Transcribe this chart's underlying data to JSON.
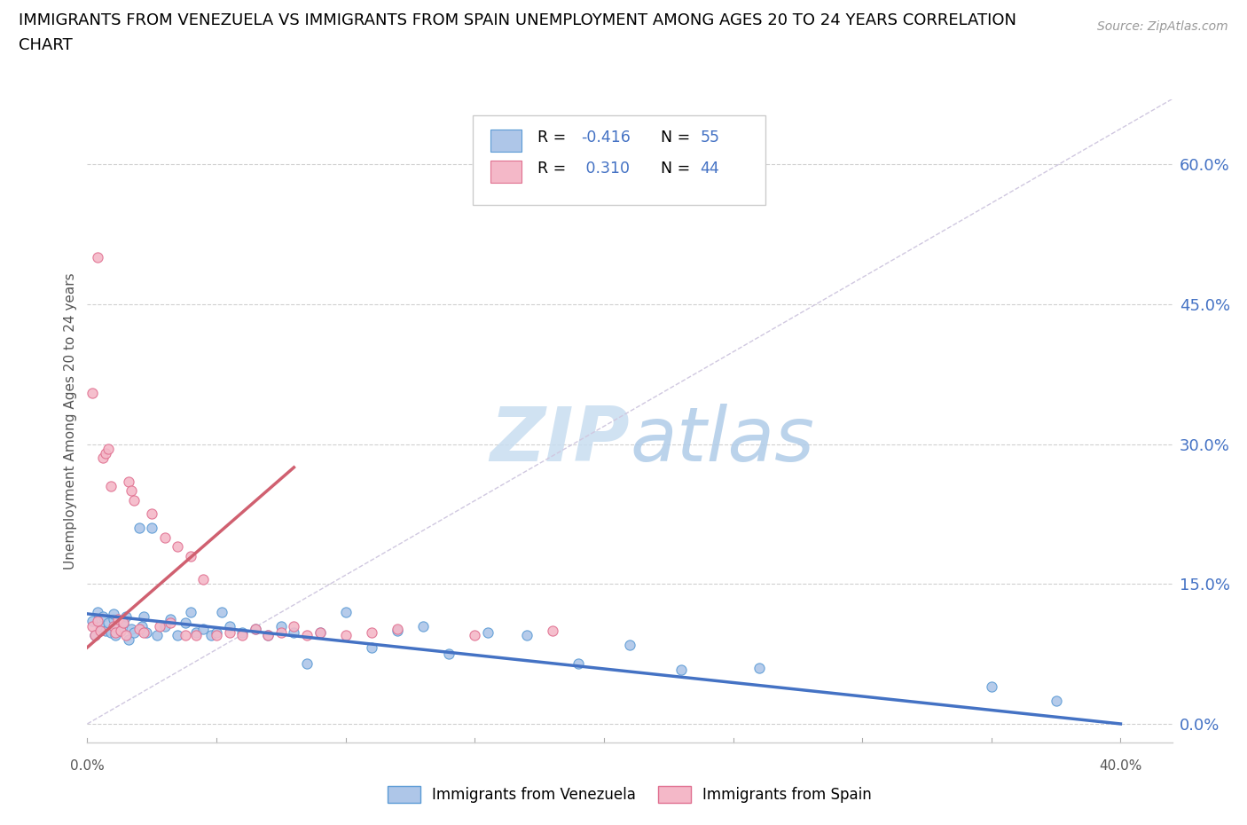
{
  "title_line1": "IMMIGRANTS FROM VENEZUELA VS IMMIGRANTS FROM SPAIN UNEMPLOYMENT AMONG AGES 20 TO 24 YEARS CORRELATION",
  "title_line2": "CHART",
  "source_text": "Source: ZipAtlas.com",
  "ylabel": "Unemployment Among Ages 20 to 24 years",
  "xlim": [
    0.0,
    0.42
  ],
  "ylim": [
    -0.02,
    0.67
  ],
  "yticks": [
    0.0,
    0.15,
    0.3,
    0.45,
    0.6
  ],
  "ytick_labels_right": [
    "0.0%",
    "15.0%",
    "30.0%",
    "45.0%",
    "60.0%"
  ],
  "xtick_bottom_left": "0.0%",
  "xtick_bottom_right": "40.0%",
  "venezuela_color": "#aec6e8",
  "venezuela_edge": "#5b9bd5",
  "spain_color": "#f4b8c8",
  "spain_edge": "#e07090",
  "venezuela_trend_color": "#4472c4",
  "spain_trend_color": "#d06070",
  "diag_color": "#d0c8e0",
  "watermark_text": "ZIPatlas",
  "watermark_color": "#dce8f5",
  "R_venezuela": -0.416,
  "N_venezuela": 55,
  "R_spain": 0.31,
  "N_spain": 44,
  "legend_label_venezuela": "Immigrants from Venezuela",
  "legend_label_spain": "Immigrants from Spain",
  "ven_x": [
    0.002,
    0.003,
    0.004,
    0.005,
    0.006,
    0.007,
    0.008,
    0.009,
    0.01,
    0.01,
    0.011,
    0.012,
    0.013,
    0.014,
    0.015,
    0.016,
    0.017,
    0.018,
    0.02,
    0.021,
    0.022,
    0.023,
    0.025,
    0.027,
    0.03,
    0.032,
    0.035,
    0.038,
    0.04,
    0.042,
    0.045,
    0.048,
    0.05,
    0.052,
    0.055,
    0.06,
    0.065,
    0.07,
    0.075,
    0.08,
    0.085,
    0.09,
    0.1,
    0.11,
    0.12,
    0.13,
    0.14,
    0.155,
    0.17,
    0.19,
    0.21,
    0.23,
    0.26,
    0.35,
    0.375
  ],
  "ven_y": [
    0.11,
    0.095,
    0.12,
    0.105,
    0.115,
    0.1,
    0.108,
    0.098,
    0.112,
    0.118,
    0.095,
    0.105,
    0.1,
    0.108,
    0.115,
    0.09,
    0.102,
    0.098,
    0.21,
    0.105,
    0.115,
    0.098,
    0.21,
    0.095,
    0.105,
    0.112,
    0.095,
    0.108,
    0.12,
    0.098,
    0.102,
    0.095,
    0.098,
    0.12,
    0.105,
    0.098,
    0.102,
    0.095,
    0.105,
    0.098,
    0.065,
    0.098,
    0.12,
    0.082,
    0.1,
    0.105,
    0.075,
    0.098,
    0.095,
    0.065,
    0.085,
    0.058,
    0.06,
    0.04,
    0.025
  ],
  "spa_x": [
    0.002,
    0.003,
    0.004,
    0.005,
    0.006,
    0.007,
    0.008,
    0.009,
    0.01,
    0.011,
    0.012,
    0.013,
    0.014,
    0.015,
    0.016,
    0.017,
    0.018,
    0.02,
    0.022,
    0.025,
    0.028,
    0.03,
    0.032,
    0.035,
    0.038,
    0.04,
    0.042,
    0.045,
    0.05,
    0.055,
    0.06,
    0.065,
    0.07,
    0.075,
    0.08,
    0.085,
    0.09,
    0.1,
    0.11,
    0.12,
    0.15,
    0.18,
    0.002,
    0.004
  ],
  "spa_y": [
    0.105,
    0.095,
    0.11,
    0.1,
    0.285,
    0.29,
    0.295,
    0.255,
    0.105,
    0.098,
    0.112,
    0.1,
    0.108,
    0.095,
    0.26,
    0.25,
    0.24,
    0.102,
    0.098,
    0.225,
    0.105,
    0.2,
    0.108,
    0.19,
    0.095,
    0.18,
    0.095,
    0.155,
    0.095,
    0.098,
    0.095,
    0.102,
    0.095,
    0.098,
    0.105,
    0.095,
    0.098,
    0.095,
    0.098,
    0.102,
    0.095,
    0.1,
    0.355,
    0.5
  ],
  "ven_trend_x0": 0.0,
  "ven_trend_y0": 0.118,
  "ven_trend_x1": 0.4,
  "ven_trend_y1": 0.0,
  "spa_trend_x0": 0.0,
  "spa_trend_y0": 0.082,
  "spa_trend_x1": 0.08,
  "spa_trend_y1": 0.275
}
